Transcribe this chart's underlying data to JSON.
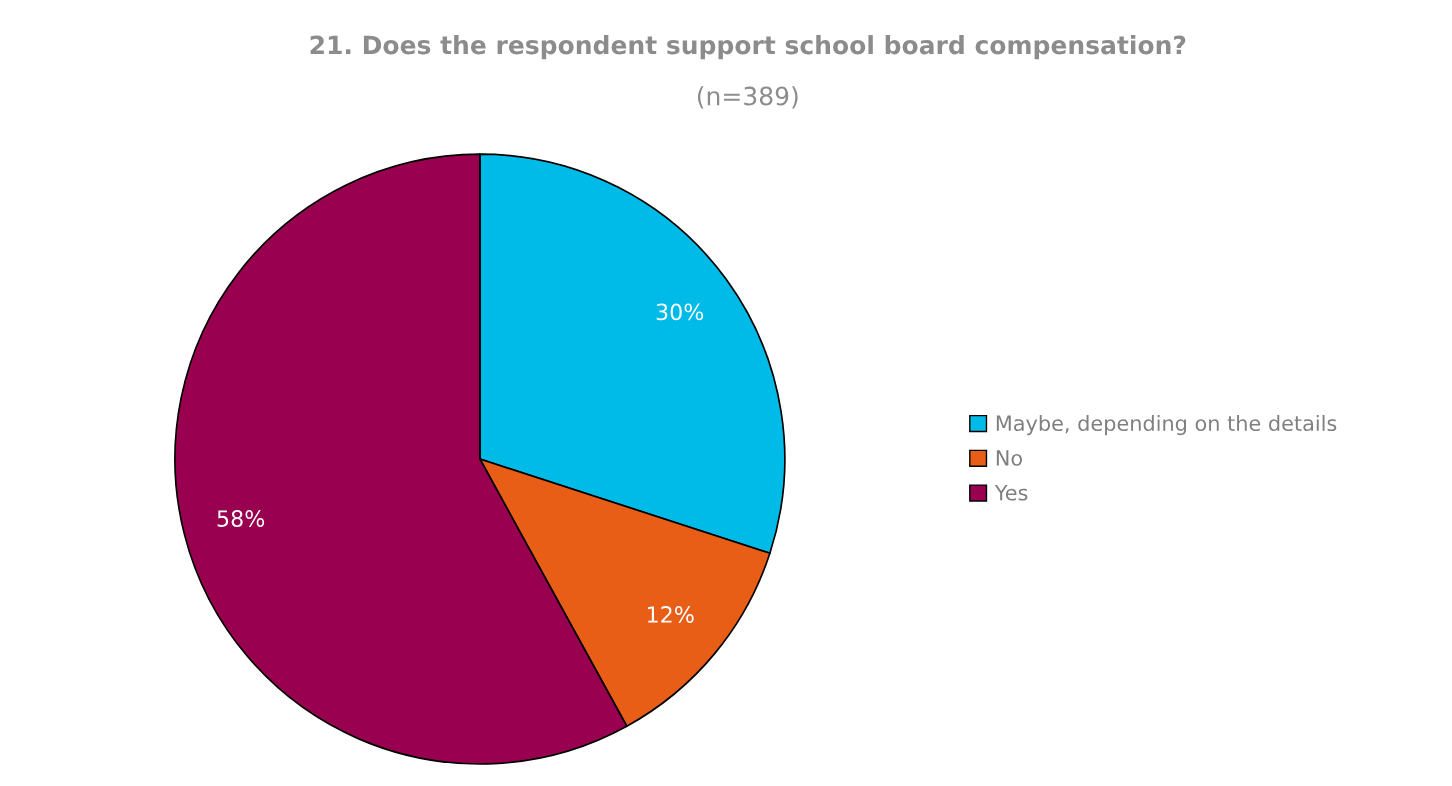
{
  "chart_data": {
    "type": "pie",
    "title": "21. Does the respondent support school board compensation?",
    "subtitle": "(n=389)",
    "categories": [
      "Maybe, depending on the details",
      "No",
      "Yes"
    ],
    "values": [
      30,
      12,
      58
    ],
    "value_labels": [
      "30%",
      "12%",
      "58%"
    ],
    "colors": [
      "#00bbe8",
      "#e95e17",
      "#990050"
    ],
    "legend": "right"
  }
}
